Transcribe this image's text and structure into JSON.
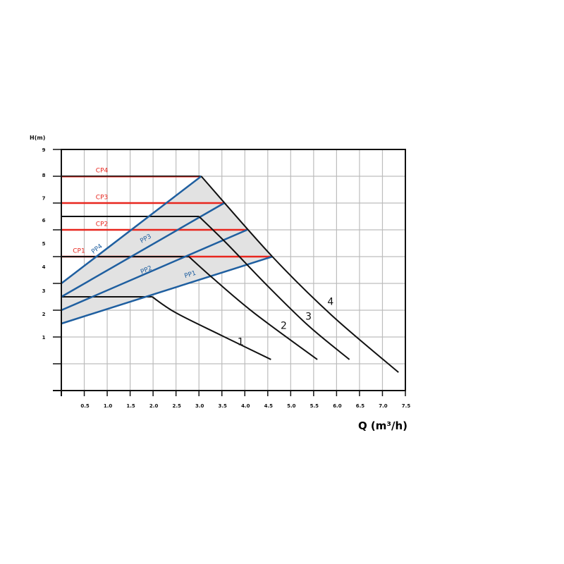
{
  "chart_data": {
    "type": "line",
    "title": "",
    "xlabel": "Q (m³/h)",
    "ylabel": "H(m)",
    "xlim": [
      0,
      7.5
    ],
    "ylim": [
      0,
      9
    ],
    "grid": true,
    "xticks": [
      "0.5",
      "1.0",
      "1.5",
      "2.0",
      "2.5",
      "3.0",
      "3.5",
      "4.0",
      "4.5",
      "5.0",
      "5.5",
      "6.0",
      "6.5",
      "7.0",
      "7.5"
    ],
    "yticks": [
      {
        "label": "9",
        "at": 9
      },
      {
        "label": "8",
        "at": 8.05
      },
      {
        "label": "7",
        "at": 7.2
      },
      {
        "label": "6",
        "at": 6.37
      },
      {
        "label": "5",
        "at": 5.5
      },
      {
        "label": "4",
        "at": 4.63
      },
      {
        "label": "3",
        "at": 3.74
      },
      {
        "label": "2",
        "at": 2.87
      },
      {
        "label": "1",
        "at": 2.0
      }
    ],
    "colors": {
      "constant_pressure": "#e8261e",
      "proportional_pressure": "#1f5fa0",
      "speed_curve": "#111111",
      "region": "#e2e2e2",
      "grid": "#bdbdbd"
    },
    "operating_region": [
      [
        0,
        4
      ],
      [
        3.05,
        8
      ],
      [
        4.6,
        5
      ],
      [
        0,
        2.5
      ]
    ],
    "constant_pressure": [
      {
        "name": "CP1",
        "h": 5,
        "q_end": 4.6,
        "label_at": [
          0.25,
          5.15
        ]
      },
      {
        "name": "CP2",
        "h": 6,
        "q_end": 4.05,
        "label_at": [
          0.75,
          6.15
        ]
      },
      {
        "name": "CP3",
        "h": 7,
        "q_end": 3.55,
        "label_at": [
          0.75,
          7.15
        ]
      },
      {
        "name": "CP4",
        "h": 8,
        "q_end": 3.05,
        "label_at": [
          0.75,
          8.15
        ]
      }
    ],
    "proportional_pressure": [
      {
        "name": "PP1",
        "points": [
          [
            0,
            2.5
          ],
          [
            4.6,
            5
          ]
        ],
        "label_at": [
          2.7,
          4.2
        ]
      },
      {
        "name": "PP2",
        "points": [
          [
            0,
            3.0
          ],
          [
            4.05,
            6
          ]
        ],
        "label_at": [
          1.75,
          4.35
        ]
      },
      {
        "name": "PP3",
        "points": [
          [
            0,
            3.5
          ],
          [
            3.55,
            7
          ]
        ],
        "label_at": [
          1.75,
          5.5
        ]
      },
      {
        "name": "PP4",
        "points": [
          [
            0,
            4.0
          ],
          [
            3.05,
            8
          ]
        ],
        "label_at": [
          0.7,
          5.1
        ]
      }
    ],
    "max_head_lines": [
      {
        "h": 8,
        "q_end": 3.05
      },
      {
        "h": 6.5,
        "q_end": 3.0
      },
      {
        "h": 5,
        "q_end": 2.78
      },
      {
        "h": 3.5,
        "q_end": 1.98
      }
    ],
    "speed_curves": [
      {
        "name": "1",
        "points": [
          [
            1.98,
            3.5
          ],
          [
            2.5,
            2.9
          ],
          [
            3.5,
            2.05
          ],
          [
            4.57,
            1.16
          ]
        ],
        "label_at": [
          3.84,
          1.7
        ]
      },
      {
        "name": "2",
        "points": [
          [
            2.78,
            5
          ],
          [
            3.3,
            4.2
          ],
          [
            4.2,
            2.9
          ],
          [
            5.58,
            1.16
          ]
        ],
        "label_at": [
          4.78,
          2.3
        ]
      },
      {
        "name": "3",
        "points": [
          [
            3.0,
            6.5
          ],
          [
            3.6,
            5.5
          ],
          [
            4.5,
            3.9
          ],
          [
            5.4,
            2.4
          ],
          [
            6.28,
            1.16
          ]
        ],
        "label_at": [
          5.32,
          2.65
        ]
      },
      {
        "name": "4",
        "points": [
          [
            3.05,
            8
          ],
          [
            4.6,
            5
          ],
          [
            5.9,
            2.8
          ],
          [
            7.35,
            0.68
          ]
        ],
        "label_at": [
          5.8,
          3.2
        ]
      }
    ]
  }
}
